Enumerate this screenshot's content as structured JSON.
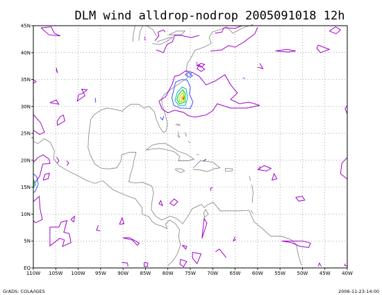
{
  "title": "DLM wind alldrop-nodrop 2005091018 12h",
  "footer": {
    "left": "GrADS: COLA/IGES",
    "right": "2006-11-23-14:00"
  },
  "map": {
    "lon_range": [
      -110,
      -40
    ],
    "lat_range": [
      0,
      45
    ],
    "lon_ticks": [
      {
        "lon": -110,
        "label": "110W"
      },
      {
        "lon": -105,
        "label": "105W"
      },
      {
        "lon": -100,
        "label": "100W"
      },
      {
        "lon": -95,
        "label": "95W"
      },
      {
        "lon": -90,
        "label": "90W"
      },
      {
        "lon": -85,
        "label": "85W"
      },
      {
        "lon": -80,
        "label": "80W"
      },
      {
        "lon": -75,
        "label": "75W"
      },
      {
        "lon": -70,
        "label": "70W"
      },
      {
        "lon": -65,
        "label": "65W"
      },
      {
        "lon": -60,
        "label": "60W"
      },
      {
        "lon": -55,
        "label": "55W"
      },
      {
        "lon": -50,
        "label": "50W"
      },
      {
        "lon": -45,
        "label": "45W"
      },
      {
        "lon": -40,
        "label": "40W"
      }
    ],
    "lat_ticks": [
      {
        "lat": 0,
        "label": "EQ"
      },
      {
        "lat": 5,
        "label": "5N"
      },
      {
        "lat": 10,
        "label": "10N"
      },
      {
        "lat": 15,
        "label": "15N"
      },
      {
        "lat": 20,
        "label": "20N"
      },
      {
        "lat": 25,
        "label": "25N"
      },
      {
        "lat": 30,
        "label": "30N"
      },
      {
        "lat": 35,
        "label": "35N"
      },
      {
        "lat": 40,
        "label": "40N"
      },
      {
        "lat": 45,
        "label": "45N"
      }
    ],
    "contour_labels": [
      {
        "text": "1",
        "lon": -73.5,
        "lat": 37.6,
        "color": "#a000c8"
      },
      {
        "text": "2",
        "lon": -74.9,
        "lat": 35.8,
        "color": "#3c50ff"
      },
      {
        "text": "1",
        "lon": -85.1,
        "lat": 42.3,
        "color": "#a000c8"
      },
      {
        "text": "1",
        "lon": -59.5,
        "lat": 18.2,
        "color": "#a000c8"
      }
    ],
    "colors": {
      "coast": "#808080",
      "grid": "#808080",
      "c1": "#a000c8",
      "c2": "#3c50ff",
      "c3": "#00b4b4",
      "c4": "#00c800",
      "c5": "#a0dc00",
      "c6": "#e6c800",
      "c7": "#ff8c00",
      "c8": "#e60000"
    }
  }
}
